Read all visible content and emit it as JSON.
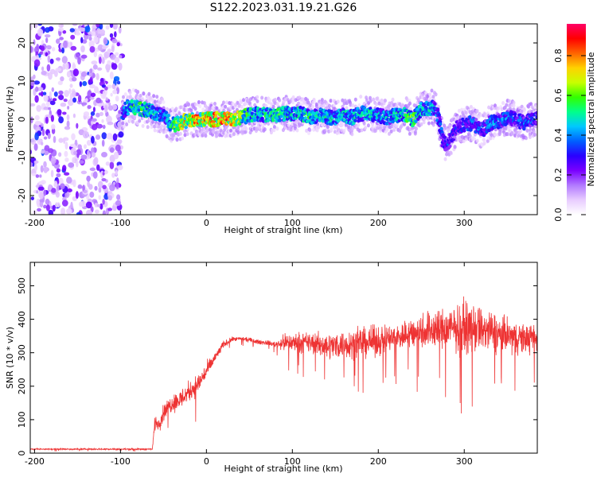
{
  "title": "S122.2023.031.19.21.G26",
  "chart_data": [
    {
      "type": "heatmap",
      "xlabel": "Height of straight line (km)",
      "ylabel": "Frequency (Hz)",
      "xlim": [
        -205,
        385
      ],
      "ylim": [
        -25,
        25
      ],
      "x_ticks": [
        -200,
        -100,
        0,
        100,
        200,
        300
      ],
      "y_ticks": [
        -20,
        -10,
        0,
        10,
        20
      ],
      "colorbar": {
        "label": "Normalized spectral amplitude",
        "range": [
          0.0,
          0.96
        ],
        "ticks": [
          0.0,
          0.2,
          0.4,
          0.6,
          0.8
        ],
        "colormap": [
          "#ffffff",
          "#e8ccff",
          "#b27aff",
          "#7a00ff",
          "#2a00ff",
          "#0060ff",
          "#00c8ff",
          "#00ff8c",
          "#32ff00",
          "#c8ff00",
          "#ffd200",
          "#ff6400",
          "#ff0000",
          "#ff0066"
        ]
      },
      "noise_region_x": [
        -205,
        -98
      ],
      "ridge": {
        "x": [
          -98,
          -90,
          -80,
          -70,
          -60,
          -50,
          -40,
          -30,
          -20,
          -10,
          0,
          10,
          20,
          30,
          40,
          50,
          60,
          70,
          80,
          90,
          100,
          110,
          120,
          130,
          140,
          150,
          160,
          170,
          180,
          190,
          200,
          210,
          220,
          230,
          240,
          250,
          260,
          265,
          270,
          275,
          280,
          290,
          300,
          310,
          320,
          330,
          340,
          350,
          360,
          370,
          380,
          385
        ],
        "frequency_hz": [
          1.5,
          3.5,
          3.0,
          2.5,
          1.5,
          1.0,
          -1.5,
          -1.0,
          0.0,
          0.0,
          0.0,
          0.0,
          0.0,
          0.0,
          0.5,
          1.0,
          1.5,
          1.0,
          1.0,
          1.5,
          1.5,
          1.5,
          0.5,
          1.0,
          0.5,
          0.5,
          1.0,
          0.5,
          1.5,
          1.5,
          1.0,
          0.5,
          1.0,
          1.5,
          0.0,
          2.5,
          3.0,
          3.0,
          0.5,
          -5.5,
          -7.0,
          -2.5,
          -1.5,
          -1.0,
          -3.0,
          -1.0,
          -0.5,
          0.5,
          0.0,
          -1.0,
          0.0,
          0.5
        ],
        "amplitude": [
          0.45,
          0.55,
          0.65,
          0.6,
          0.55,
          0.45,
          0.6,
          0.8,
          0.85,
          0.9,
          0.92,
          0.95,
          0.9,
          0.88,
          0.75,
          0.6,
          0.55,
          0.6,
          0.65,
          0.6,
          0.55,
          0.6,
          0.6,
          0.55,
          0.55,
          0.5,
          0.55,
          0.55,
          0.5,
          0.55,
          0.5,
          0.5,
          0.55,
          0.6,
          0.7,
          0.55,
          0.55,
          0.5,
          0.45,
          0.4,
          0.4,
          0.35,
          0.4,
          0.45,
          0.4,
          0.45,
          0.45,
          0.45,
          0.4,
          0.45,
          0.4,
          0.4
        ]
      }
    },
    {
      "type": "line",
      "xlabel": "Height of straight line (km)",
      "ylabel": "SNR (10 * v/v)",
      "xlim": [
        -205,
        385
      ],
      "ylim": [
        0,
        570
      ],
      "x_ticks": [
        -200,
        -100,
        0,
        100,
        200,
        300
      ],
      "y_ticks": [
        0,
        100,
        200,
        300,
        400,
        500
      ],
      "series": [
        {
          "color": "#ee3333",
          "x": [
            -205,
            -150,
            -100,
            -70,
            -63,
            -60,
            -55,
            -50,
            -40,
            -30,
            -20,
            -10,
            0,
            10,
            20,
            30,
            40,
            50,
            60,
            70,
            80,
            90,
            100,
            120,
            140,
            160,
            180,
            200,
            220,
            240,
            260,
            280,
            300,
            320,
            340,
            360,
            385
          ],
          "y": [
            12,
            12,
            12,
            12,
            12,
            90,
            90,
            120,
            150,
            160,
            185,
            205,
            245,
            285,
            325,
            340,
            342,
            338,
            332,
            330,
            325,
            330,
            330,
            330,
            320,
            325,
            330,
            335,
            345,
            360,
            370,
            370,
            375,
            370,
            355,
            345,
            340
          ],
          "noise_amplitude": [
            3,
            3,
            3,
            3,
            3,
            30,
            35,
            35,
            40,
            45,
            45,
            45,
            35,
            25,
            15,
            10,
            8,
            10,
            10,
            10,
            12,
            35,
            40,
            45,
            55,
            60,
            65,
            65,
            60,
            70,
            85,
            95,
            105,
            100,
            85,
            70,
            60
          ]
        }
      ]
    }
  ]
}
